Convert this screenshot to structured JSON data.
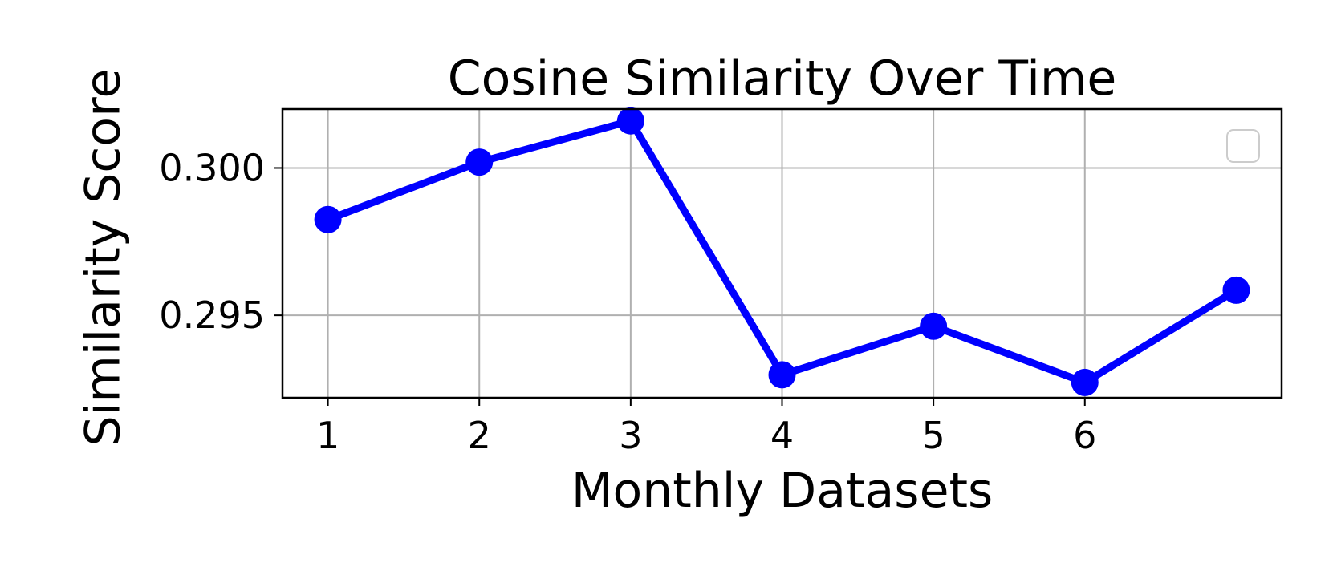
{
  "chart_data": {
    "type": "line",
    "title": "Cosine Similarity Over Time",
    "xlabel": "Monthly Datasets",
    "ylabel": "Similarity Score",
    "x": [
      1,
      2,
      3,
      4,
      5,
      6,
      7
    ],
    "xticks": [
      "1",
      "2",
      "3",
      "4",
      "5",
      "6"
    ],
    "yticks": [
      "0.295",
      "0.300"
    ],
    "series": [
      {
        "values": [
          0.29825,
          0.3002,
          0.3016,
          0.29298,
          0.29463,
          0.29272,
          0.29585
        ],
        "color": "#0000ff"
      }
    ],
    "xlim": [
      0.7,
      7.3
    ],
    "ylim": [
      0.2922,
      0.302
    ],
    "grid": true,
    "legend": "top-right (empty)"
  }
}
